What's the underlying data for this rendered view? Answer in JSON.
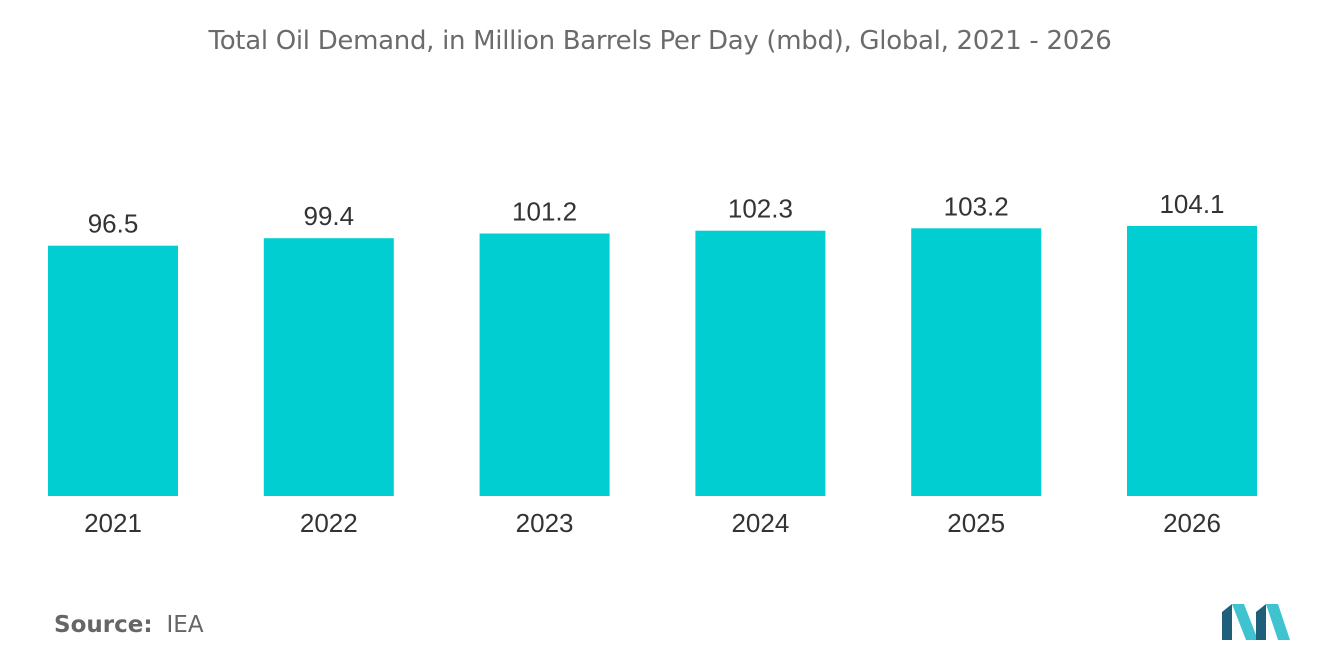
{
  "title": "Total Oil Demand, in Million Barrels Per Day (mbd), Global, 2021 - 2026",
  "source": {
    "label": "Source:",
    "value": "IEA"
  },
  "colors": {
    "bar": "#00CED1",
    "logo_dark": "#1f5f7a",
    "logo_light": "#3fc3cf"
  },
  "chart_data": {
    "type": "bar",
    "title": "Total Oil Demand, in Million Barrels Per Day (mbd), Global, 2021 - 2026",
    "categories": [
      "2021",
      "2022",
      "2023",
      "2024",
      "2025",
      "2026"
    ],
    "values": [
      96.5,
      99.4,
      101.2,
      102.3,
      103.2,
      104.1
    ],
    "data_labels": [
      "96.5",
      "99.4",
      "101.2",
      "102.3",
      "103.2",
      "104.1"
    ],
    "xlabel": "",
    "ylabel": "",
    "ylim": [
      0,
      104.1
    ],
    "grid": false,
    "legend": "none"
  }
}
